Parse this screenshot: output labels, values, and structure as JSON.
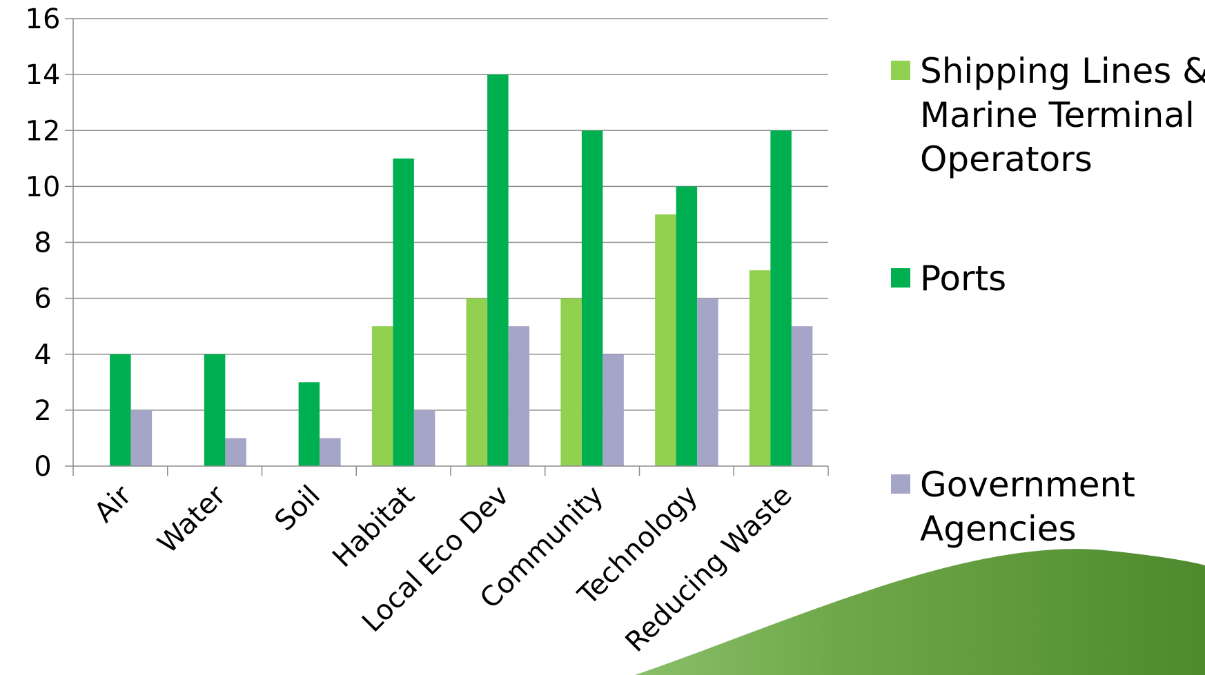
{
  "chart_data": {
    "type": "bar",
    "title": "",
    "xlabel": "",
    "ylabel": "",
    "ylim": [
      0,
      16
    ],
    "yticks": [
      0,
      2,
      4,
      6,
      8,
      10,
      12,
      14,
      16
    ],
    "grid": true,
    "legend_position": "right",
    "categories": [
      "Air",
      "Water",
      "Soil",
      "Habitat",
      "Local Eco Dev",
      "Community",
      "Technology",
      "Reducing Waste"
    ],
    "series": [
      {
        "name": "Shipping Lines & Marine Terminal Operators",
        "legend_lines": [
          "Shipping Lines &",
          "Marine Terminal",
          "Operators"
        ],
        "color": "#92D050",
        "values": [
          0,
          0,
          0,
          5,
          6,
          6,
          9,
          7
        ]
      },
      {
        "name": "Ports",
        "legend_lines": [
          "Ports"
        ],
        "color": "#00B050",
        "values": [
          4,
          4,
          3,
          11,
          14,
          12,
          10,
          12
        ]
      },
      {
        "name": "Government Agencies",
        "legend_lines": [
          "Government",
          "Agencies"
        ],
        "color": "#A5A5C8",
        "values": [
          2,
          1,
          1,
          2,
          5,
          4,
          6,
          5
        ]
      }
    ]
  }
}
